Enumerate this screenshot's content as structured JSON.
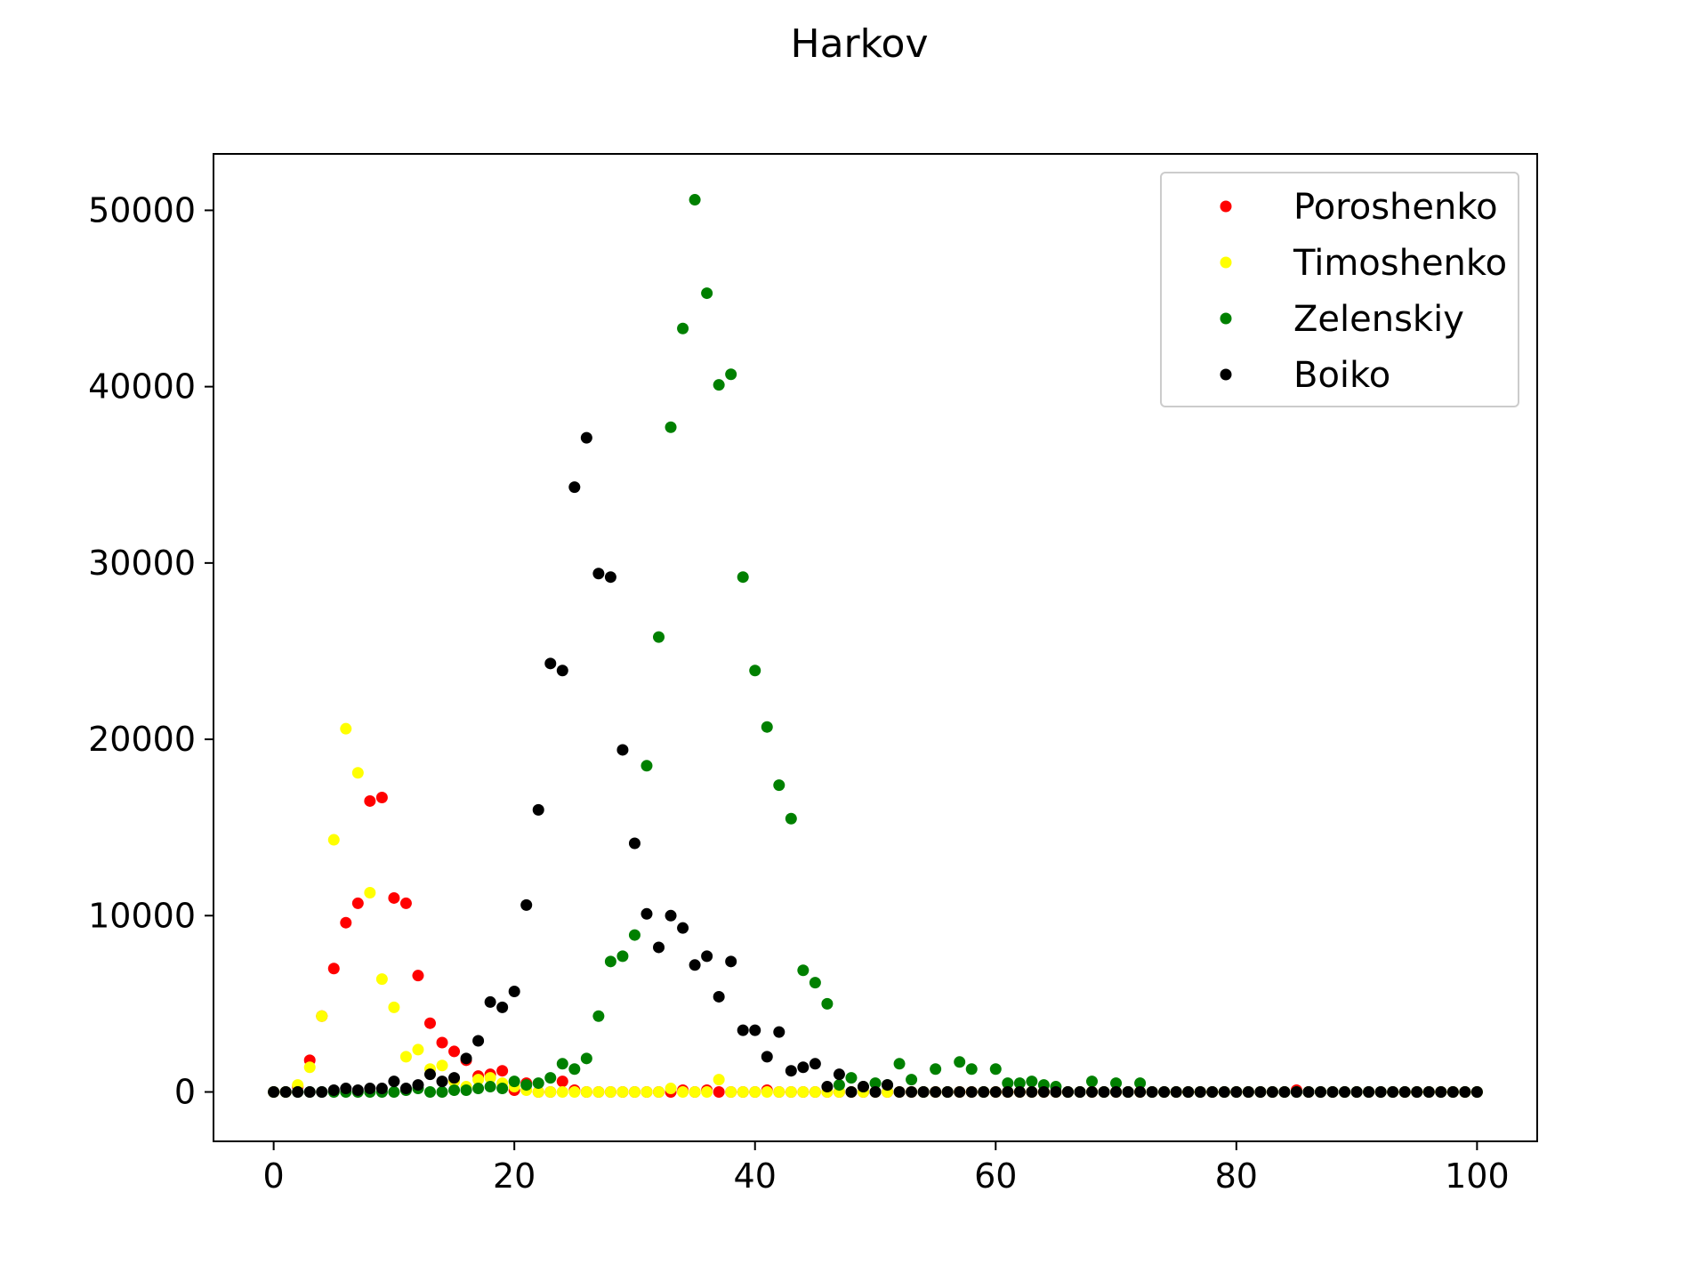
{
  "chart_data": {
    "type": "scatter",
    "title": "Harkov",
    "xlabel": "",
    "ylabel": "",
    "xlim": [
      -5,
      105
    ],
    "ylim": [
      -2800,
      53200
    ],
    "xticks": [
      0,
      20,
      40,
      60,
      80,
      100
    ],
    "xtick_labels": [
      "0",
      "20",
      "40",
      "60",
      "80",
      "100"
    ],
    "yticks": [
      0,
      10000,
      20000,
      30000,
      40000,
      50000
    ],
    "ytick_labels": [
      "0",
      "10000",
      "20000",
      "30000",
      "40000",
      "50000"
    ],
    "grid": false,
    "legend_position": "top-right",
    "x": [
      0,
      1,
      2,
      3,
      4,
      5,
      6,
      7,
      8,
      9,
      10,
      11,
      12,
      13,
      14,
      15,
      16,
      17,
      18,
      19,
      20,
      21,
      22,
      23,
      24,
      25,
      26,
      27,
      28,
      29,
      30,
      31,
      32,
      33,
      34,
      35,
      36,
      37,
      38,
      39,
      40,
      41,
      42,
      43,
      44,
      45,
      46,
      47,
      48,
      49,
      50,
      51,
      52,
      53,
      54,
      55,
      56,
      57,
      58,
      59,
      60,
      61,
      62,
      63,
      64,
      65,
      66,
      67,
      68,
      69,
      70,
      71,
      72,
      73,
      74,
      75,
      76,
      77,
      78,
      79,
      80,
      81,
      82,
      83,
      84,
      85,
      86,
      87,
      88,
      89,
      90,
      91,
      92,
      93,
      94,
      95,
      96,
      97,
      98,
      99,
      100
    ],
    "series": [
      {
        "name": "Poroshenko",
        "color": "#ff0000",
        "y": [
          0,
          0,
          300,
          1800,
          4300,
          7000,
          9600,
          10700,
          16500,
          16700,
          11000,
          10700,
          6600,
          3900,
          2800,
          2300,
          1800,
          900,
          1000,
          1200,
          100,
          500,
          0,
          0,
          600,
          100,
          0,
          0,
          0,
          0,
          0,
          0,
          0,
          0,
          100,
          0,
          100,
          0,
          0,
          0,
          0,
          100,
          0,
          0,
          0,
          0,
          0,
          0,
          0,
          0,
          0,
          0,
          0,
          0,
          0,
          0,
          0,
          0,
          0,
          0,
          0,
          0,
          0,
          0,
          0,
          0,
          0,
          0,
          0,
          0,
          0,
          0,
          0,
          0,
          0,
          0,
          0,
          0,
          0,
          0,
          0,
          0,
          0,
          0,
          0,
          100,
          0,
          0,
          0,
          0,
          0,
          0,
          0,
          0,
          0,
          0,
          0,
          0,
          0,
          0,
          0
        ]
      },
      {
        "name": "Timoshenko",
        "color": "#ffff00",
        "y": [
          0,
          0,
          400,
          1400,
          4300,
          14300,
          20600,
          18100,
          11300,
          6400,
          4800,
          2000,
          2400,
          1300,
          1500,
          600,
          300,
          700,
          800,
          500,
          300,
          100,
          0,
          0,
          0,
          0,
          0,
          0,
          0,
          0,
          0,
          0,
          0,
          200,
          0,
          0,
          0,
          700,
          0,
          0,
          0,
          0,
          0,
          0,
          0,
          0,
          0,
          0,
          0,
          0,
          0,
          0,
          0,
          0,
          0,
          0,
          0,
          0,
          0,
          0,
          0,
          0,
          0,
          0,
          0,
          0,
          0,
          0,
          0,
          0,
          0,
          0,
          0,
          0,
          0,
          0,
          0,
          0,
          0,
          0,
          0,
          0,
          0,
          0,
          0,
          0,
          0,
          0,
          0,
          0,
          0,
          0,
          0,
          0,
          0,
          0,
          0,
          0,
          0,
          0,
          0
        ]
      },
      {
        "name": "Zelenskiy",
        "color": "#008000",
        "y": [
          0,
          0,
          0,
          0,
          0,
          0,
          0,
          0,
          0,
          0,
          0,
          100,
          200,
          0,
          0,
          100,
          100,
          200,
          300,
          200,
          600,
          400,
          500,
          800,
          1600,
          1300,
          1900,
          4300,
          7400,
          7700,
          8900,
          18500,
          25800,
          37700,
          43300,
          50600,
          45300,
          40100,
          40700,
          29200,
          23900,
          20700,
          17400,
          15500,
          6900,
          6200,
          5000,
          400,
          800,
          300,
          500,
          400,
          1600,
          700,
          0,
          1300,
          0,
          1700,
          1300,
          0,
          1300,
          500,
          500,
          600,
          400,
          300,
          0,
          0,
          600,
          0,
          500,
          0,
          500,
          0,
          0,
          0,
          0,
          0,
          0,
          0,
          0,
          0,
          0,
          0,
          0,
          0,
          0,
          0,
          0,
          0,
          0,
          0,
          0,
          0,
          0,
          0,
          0,
          0,
          0,
          0,
          0
        ]
      },
      {
        "name": "Boiko",
        "color": "#000000",
        "y": [
          0,
          0,
          0,
          0,
          0,
          100,
          200,
          100,
          200,
          200,
          600,
          200,
          400,
          1000,
          600,
          800,
          1900,
          2900,
          5100,
          4800,
          5700,
          10600,
          16000,
          24300,
          23900,
          34300,
          37100,
          29400,
          29200,
          19400,
          14100,
          10100,
          8200,
          10000,
          9300,
          7200,
          7700,
          5400,
          7400,
          3500,
          3500,
          2000,
          3400,
          1200,
          1400,
          1600,
          300,
          1000,
          0,
          300,
          0,
          400,
          0,
          0,
          0,
          0,
          0,
          0,
          0,
          0,
          0,
          0,
          0,
          0,
          0,
          0,
          0,
          0,
          0,
          0,
          0,
          0,
          0,
          0,
          0,
          0,
          0,
          0,
          0,
          0,
          0,
          0,
          0,
          0,
          0,
          0,
          0,
          0,
          0,
          0,
          0,
          0,
          0,
          0,
          0,
          0,
          0,
          0,
          0,
          0,
          0
        ]
      }
    ]
  }
}
